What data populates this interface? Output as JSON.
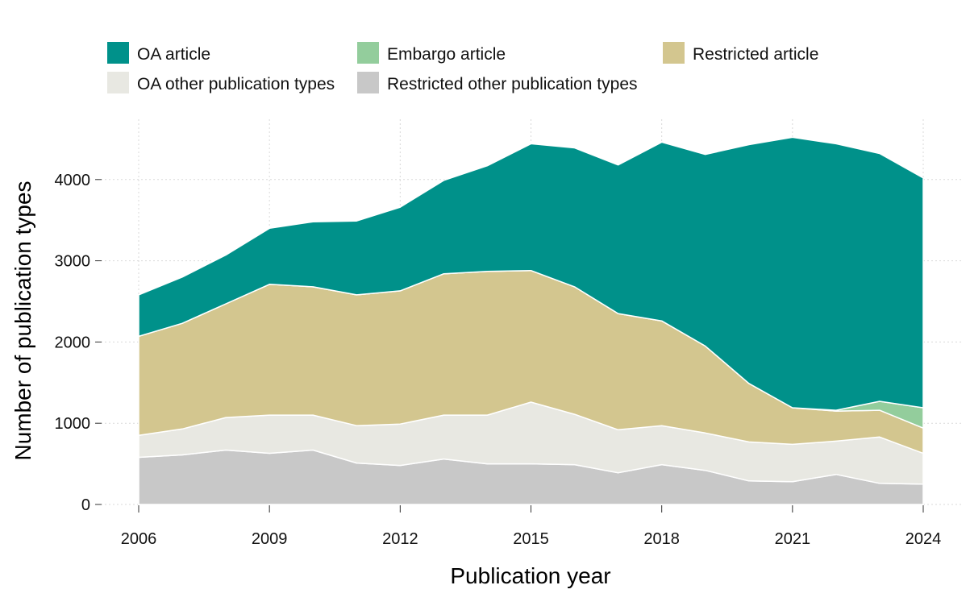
{
  "chart_data": {
    "type": "area",
    "stacked": true,
    "xlabel": "Publication year",
    "ylabel": "Number of publication types",
    "xlim": [
      2006,
      2024
    ],
    "ylim": [
      0,
      4500
    ],
    "x_ticks": [
      2006,
      2009,
      2012,
      2015,
      2018,
      2021,
      2024
    ],
    "y_ticks": [
      0,
      1000,
      2000,
      3000,
      4000
    ],
    "grid": true,
    "legend_position": "top",
    "x": [
      2006,
      2007,
      2008,
      2009,
      2010,
      2011,
      2012,
      2013,
      2014,
      2015,
      2016,
      2017,
      2018,
      2019,
      2020,
      2021,
      2022,
      2023,
      2024
    ],
    "series": [
      {
        "name": "Restricted other publication types",
        "color": "#c8c8c8",
        "values": [
          580,
          610,
          670,
          630,
          670,
          510,
          480,
          560,
          500,
          500,
          490,
          390,
          490,
          420,
          290,
          280,
          370,
          260,
          250
        ]
      },
      {
        "name": "OA other publication types",
        "color": "#e8e8e2",
        "values": [
          270,
          320,
          400,
          470,
          430,
          460,
          510,
          540,
          600,
          760,
          620,
          530,
          480,
          460,
          480,
          460,
          410,
          570,
          380
        ]
      },
      {
        "name": "Restricted article",
        "color": "#d3c68f",
        "values": [
          1220,
          1300,
          1400,
          1610,
          1580,
          1610,
          1640,
          1740,
          1770,
          1620,
          1570,
          1430,
          1290,
          1070,
          720,
          450,
          370,
          330,
          310
        ]
      },
      {
        "name": "Embargo article",
        "color": "#93cd9c",
        "values": [
          0,
          0,
          0,
          0,
          0,
          0,
          0,
          0,
          0,
          0,
          0,
          0,
          0,
          0,
          0,
          0,
          10,
          110,
          250
        ]
      },
      {
        "name": "OA article",
        "color": "#00918a",
        "values": [
          510,
          570,
          600,
          690,
          800,
          910,
          1030,
          1150,
          1300,
          1560,
          1710,
          1830,
          2200,
          2360,
          2940,
          3330,
          3280,
          3050,
          2830
        ]
      }
    ],
    "legend_order": [
      "OA article",
      "Embargo article",
      "Restricted article",
      "OA other publication types",
      "Restricted other publication types"
    ]
  }
}
